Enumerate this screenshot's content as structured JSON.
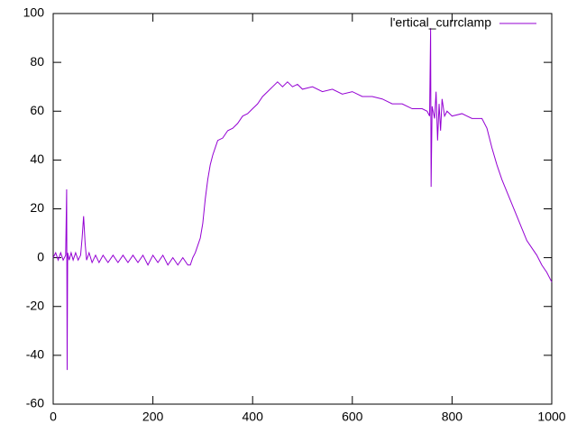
{
  "chart_data": {
    "type": "line",
    "x": [
      0,
      5,
      10,
      15,
      20,
      25,
      27,
      28,
      29,
      32,
      36,
      40,
      45,
      50,
      55,
      58,
      61,
      64,
      67,
      72,
      78,
      85,
      92,
      100,
      110,
      120,
      130,
      140,
      150,
      160,
      170,
      180,
      190,
      200,
      210,
      220,
      230,
      240,
      250,
      260,
      270,
      275,
      280,
      285,
      290,
      295,
      300,
      305,
      310,
      315,
      320,
      325,
      330,
      340,
      350,
      360,
      370,
      380,
      390,
      400,
      410,
      420,
      430,
      440,
      450,
      460,
      470,
      480,
      490,
      500,
      520,
      540,
      560,
      580,
      600,
      620,
      640,
      660,
      680,
      700,
      720,
      740,
      750,
      755,
      757,
      758,
      760,
      765,
      768,
      771,
      774,
      777,
      780,
      785,
      790,
      800,
      820,
      840,
      860,
      870,
      880,
      890,
      900,
      910,
      920,
      930,
      940,
      950,
      960,
      970,
      980,
      990,
      1000
    ],
    "series": [
      {
        "name": "l'ertical_currclamp",
        "color": "#9400d3",
        "values": [
          0,
          2,
          -1,
          2,
          -1,
          1,
          28,
          -46,
          2,
          -1,
          2,
          -1,
          2,
          -1,
          1,
          8,
          17,
          6,
          -1,
          2,
          -2,
          1,
          -2,
          1,
          -2,
          1,
          -2,
          1,
          -2,
          1,
          -2,
          1,
          -3,
          1,
          -2,
          1,
          -3,
          0,
          -3,
          0,
          -3,
          -3,
          0,
          2,
          5,
          8,
          14,
          24,
          32,
          38,
          42,
          45,
          48,
          49,
          52,
          53,
          55,
          58,
          59,
          61,
          63,
          66,
          68,
          70,
          72,
          70,
          72,
          70,
          71,
          69,
          70,
          68,
          69,
          67,
          68,
          66,
          66,
          65,
          63,
          63,
          61,
          61,
          60,
          58,
          94,
          29,
          62,
          57,
          68,
          48,
          63,
          52,
          65,
          58,
          60,
          58,
          59,
          57,
          57,
          53,
          45,
          38,
          32,
          27,
          22,
          17,
          12,
          7,
          4,
          1,
          -3,
          -6,
          -10
        ]
      }
    ],
    "xlim": [
      0,
      1000
    ],
    "xticks": [
      0,
      200,
      400,
      600,
      800,
      1000
    ],
    "ylim": [
      -60,
      100
    ],
    "yticks": [
      -60,
      -40,
      -20,
      0,
      20,
      40,
      60,
      80,
      100
    ],
    "legend": "top-right"
  }
}
